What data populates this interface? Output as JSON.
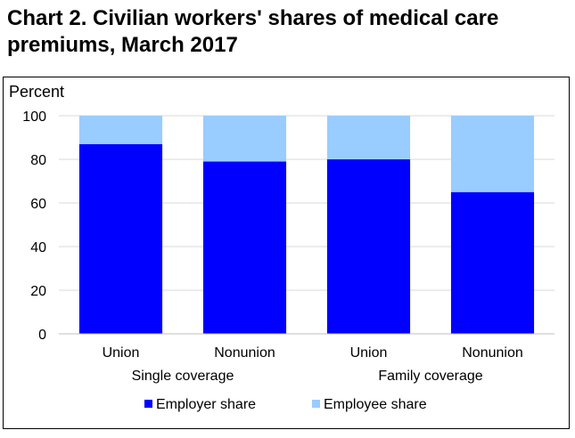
{
  "chart_data": {
    "type": "bar",
    "stacked": true,
    "title": "Chart 2. Civilian workers' shares of medical care premiums, March 2017",
    "ylabel": "Percent",
    "xlabel": "",
    "ylim": [
      0,
      100
    ],
    "yticks": [
      "0",
      "20",
      "40",
      "60",
      "80",
      "100"
    ],
    "grid": true,
    "legend": "bottom",
    "categories": [
      "Union",
      "Nonunion",
      "Union",
      "Nonunion"
    ],
    "groups": [
      {
        "label": "Single coverage",
        "categories": [
          "Union",
          "Nonunion"
        ]
      },
      {
        "label": "Family coverage",
        "categories": [
          "Union",
          "Nonunion"
        ]
      }
    ],
    "series": [
      {
        "name": "Employer share",
        "color": "#0000FF",
        "values": [
          87,
          79,
          80,
          65
        ]
      },
      {
        "name": "Employee share",
        "color": "#99CCFF",
        "values": [
          13,
          21,
          20,
          35
        ]
      }
    ]
  }
}
